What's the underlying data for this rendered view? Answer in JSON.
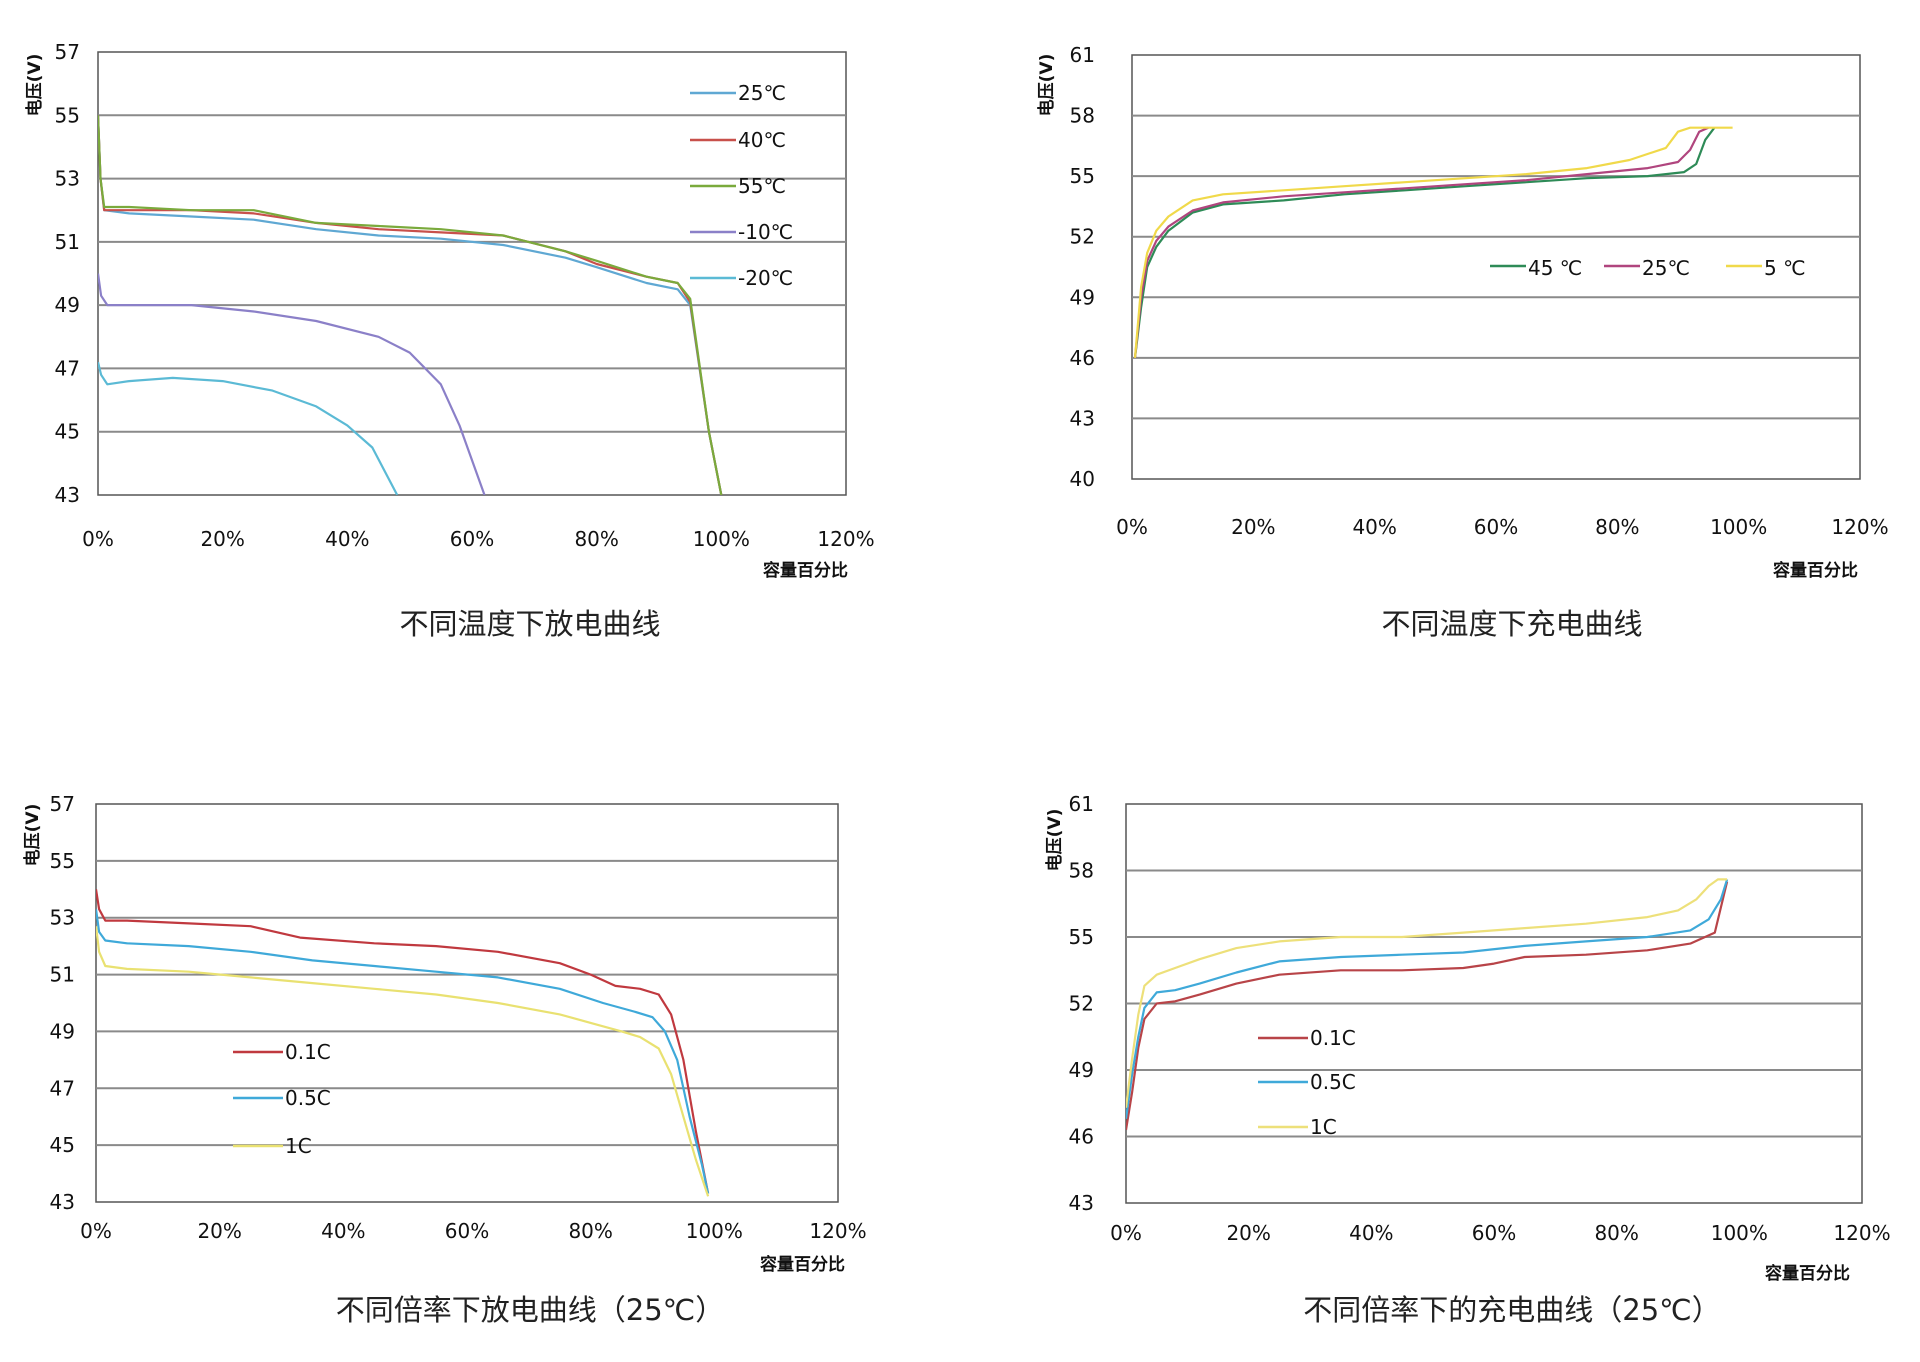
{
  "chart_data": [
    {
      "type": "line",
      "caption": "不同温度下放电曲线",
      "xlabel": "容量百分比",
      "ylabel": "电压(V)",
      "xlim": [
        0,
        120
      ],
      "ylim": [
        43,
        57
      ],
      "xticks": [
        "0%",
        "20%",
        "40%",
        "60%",
        "80%",
        "100%",
        "120%"
      ],
      "yticks": [
        "43",
        "45",
        "47",
        "49",
        "51",
        "53",
        "55",
        "57"
      ],
      "legend_position": "top-right",
      "series": [
        {
          "name": "25℃",
          "color": "#5fa8d3",
          "points": [
            [
              0,
              55
            ],
            [
              0.4,
              53
            ],
            [
              1,
              52
            ],
            [
              5,
              51.9
            ],
            [
              15,
              51.8
            ],
            [
              25,
              51.7
            ],
            [
              35,
              51.4
            ],
            [
              45,
              51.2
            ],
            [
              55,
              51.1
            ],
            [
              65,
              50.9
            ],
            [
              75,
              50.5
            ],
            [
              80,
              50.2
            ],
            [
              88,
              49.7
            ],
            [
              93,
              49.5
            ],
            [
              95,
              49
            ],
            [
              98,
              45
            ],
            [
              100,
              43
            ]
          ]
        },
        {
          "name": "40℃",
          "color": "#c8504b",
          "points": [
            [
              0,
              55
            ],
            [
              0.4,
              53
            ],
            [
              1,
              52
            ],
            [
              5,
              52
            ],
            [
              15,
              52
            ],
            [
              25,
              51.9
            ],
            [
              35,
              51.6
            ],
            [
              45,
              51.4
            ],
            [
              55,
              51.3
            ],
            [
              65,
              51.2
            ],
            [
              75,
              50.7
            ],
            [
              80,
              50.3
            ],
            [
              88,
              49.9
            ],
            [
              93,
              49.7
            ],
            [
              95,
              49.1
            ],
            [
              98,
              45
            ],
            [
              100,
              43
            ]
          ]
        },
        {
          "name": "55℃",
          "color": "#7aaa3c",
          "points": [
            [
              0,
              55
            ],
            [
              0.4,
              53
            ],
            [
              1,
              52.1
            ],
            [
              5,
              52.1
            ],
            [
              15,
              52
            ],
            [
              25,
              52
            ],
            [
              35,
              51.6
            ],
            [
              45,
              51.5
            ],
            [
              55,
              51.4
            ],
            [
              65,
              51.2
            ],
            [
              75,
              50.7
            ],
            [
              80,
              50.4
            ],
            [
              88,
              49.9
            ],
            [
              93,
              49.7
            ],
            [
              95,
              49.2
            ],
            [
              98,
              45
            ],
            [
              100,
              43
            ]
          ]
        },
        {
          "name": "-10℃",
          "color": "#8b80c8",
          "points": [
            [
              0,
              50
            ],
            [
              0.5,
              49.3
            ],
            [
              1.5,
              49
            ],
            [
              5,
              49
            ],
            [
              15,
              49
            ],
            [
              25,
              48.8
            ],
            [
              35,
              48.5
            ],
            [
              45,
              48
            ],
            [
              50,
              47.5
            ],
            [
              55,
              46.5
            ],
            [
              58,
              45.2
            ],
            [
              62,
              43
            ]
          ]
        },
        {
          "name": "-20℃",
          "color": "#5bbad5",
          "points": [
            [
              0,
              47.2
            ],
            [
              0.5,
              46.8
            ],
            [
              1.5,
              46.5
            ],
            [
              5,
              46.6
            ],
            [
              12,
              46.7
            ],
            [
              20,
              46.6
            ],
            [
              28,
              46.3
            ],
            [
              35,
              45.8
            ],
            [
              40,
              45.2
            ],
            [
              44,
              44.5
            ],
            [
              48,
              43
            ]
          ]
        }
      ]
    },
    {
      "type": "line",
      "caption": "不同温度下充电曲线",
      "xlabel": "容量百分比",
      "ylabel": "电压(V)",
      "xlim": [
        0,
        120
      ],
      "ylim": [
        40,
        61
      ],
      "xticks": [
        "0%",
        "20%",
        "40%",
        "60%",
        "80%",
        "100%",
        "120%"
      ],
      "yticks": [
        "40",
        "43",
        "46",
        "49",
        "52",
        "55",
        "58",
        "61"
      ],
      "legend_position": "middle-right",
      "series": [
        {
          "name": "45 ℃",
          "color": "#2e8b57",
          "points": [
            [
              0.5,
              46
            ],
            [
              1.5,
              48.5
            ],
            [
              2.5,
              50.5
            ],
            [
              4,
              51.5
            ],
            [
              6,
              52.3
            ],
            [
              10,
              53.2
            ],
            [
              15,
              53.6
            ],
            [
              25,
              53.8
            ],
            [
              35,
              54.1
            ],
            [
              45,
              54.3
            ],
            [
              55,
              54.5
            ],
            [
              65,
              54.7
            ],
            [
              75,
              54.9
            ],
            [
              85,
              55
            ],
            [
              91,
              55.2
            ],
            [
              93,
              55.6
            ],
            [
              94.5,
              56.8
            ],
            [
              96,
              57.4
            ]
          ]
        },
        {
          "name": "25℃",
          "color": "#b0457e",
          "points": [
            [
              0.5,
              46
            ],
            [
              1.5,
              49
            ],
            [
              2.5,
              50.8
            ],
            [
              4,
              51.8
            ],
            [
              6,
              52.5
            ],
            [
              10,
              53.3
            ],
            [
              15,
              53.7
            ],
            [
              25,
              54
            ],
            [
              35,
              54.2
            ],
            [
              45,
              54.4
            ],
            [
              55,
              54.6
            ],
            [
              65,
              54.8
            ],
            [
              75,
              55.1
            ],
            [
              85,
              55.4
            ],
            [
              90,
              55.7
            ],
            [
              92,
              56.3
            ],
            [
              93.5,
              57.2
            ],
            [
              95,
              57.4
            ]
          ]
        },
        {
          "name": "5 ℃",
          "color": "#f0d94a",
          "points": [
            [
              0.5,
              46
            ],
            [
              1.5,
              49.5
            ],
            [
              2.5,
              51.2
            ],
            [
              4,
              52.3
            ],
            [
              6,
              53
            ],
            [
              10,
              53.8
            ],
            [
              15,
              54.1
            ],
            [
              25,
              54.3
            ],
            [
              35,
              54.5
            ],
            [
              45,
              54.7
            ],
            [
              55,
              54.9
            ],
            [
              65,
              55.1
            ],
            [
              75,
              55.4
            ],
            [
              82,
              55.8
            ],
            [
              88,
              56.4
            ],
            [
              90,
              57.2
            ],
            [
              92,
              57.4
            ],
            [
              99,
              57.4
            ]
          ]
        }
      ]
    },
    {
      "type": "line",
      "caption": "不同倍率下放电曲线（25℃）",
      "xlabel": "容量百分比",
      "ylabel": "电压(V)",
      "xlim": [
        0,
        120
      ],
      "ylim": [
        43,
        57
      ],
      "xticks": [
        "0%",
        "20%",
        "40%",
        "60%",
        "80%",
        "100%",
        "120%"
      ],
      "yticks": [
        "43",
        "45",
        "47",
        "49",
        "51",
        "53",
        "55",
        "57"
      ],
      "legend_position": "lower-left",
      "series": [
        {
          "name": "0.1C",
          "color": "#c0393f",
          "points": [
            [
              0,
              54
            ],
            [
              0.5,
              53.3
            ],
            [
              1.5,
              52.9
            ],
            [
              5,
              52.9
            ],
            [
              15,
              52.8
            ],
            [
              25,
              52.7
            ],
            [
              33,
              52.3
            ],
            [
              45,
              52.1
            ],
            [
              55,
              52
            ],
            [
              65,
              51.8
            ],
            [
              75,
              51.4
            ],
            [
              80,
              51
            ],
            [
              84,
              50.6
            ],
            [
              88,
              50.5
            ],
            [
              91,
              50.3
            ],
            [
              93,
              49.6
            ],
            [
              95,
              48
            ],
            [
              97,
              45.5
            ],
            [
              99,
              43.3
            ]
          ]
        },
        {
          "name": "0.5C",
          "color": "#3fa9d9",
          "points": [
            [
              0,
              53.3
            ],
            [
              0.5,
              52.5
            ],
            [
              1.5,
              52.2
            ],
            [
              5,
              52.1
            ],
            [
              15,
              52
            ],
            [
              25,
              51.8
            ],
            [
              35,
              51.5
            ],
            [
              45,
              51.3
            ],
            [
              55,
              51.1
            ],
            [
              65,
              50.9
            ],
            [
              75,
              50.5
            ],
            [
              82,
              50
            ],
            [
              87,
              49.7
            ],
            [
              90,
              49.5
            ],
            [
              92,
              49
            ],
            [
              94,
              48
            ],
            [
              96,
              46
            ],
            [
              98,
              44.3
            ],
            [
              99,
              43.3
            ]
          ]
        },
        {
          "name": "1C",
          "color": "#e9e171",
          "points": [
            [
              0,
              52.7
            ],
            [
              0.5,
              51.8
            ],
            [
              1.5,
              51.3
            ],
            [
              5,
              51.2
            ],
            [
              15,
              51.1
            ],
            [
              25,
              50.9
            ],
            [
              35,
              50.7
            ],
            [
              45,
              50.5
            ],
            [
              55,
              50.3
            ],
            [
              65,
              50
            ],
            [
              75,
              49.6
            ],
            [
              80,
              49.3
            ],
            [
              85,
              49
            ],
            [
              88,
              48.8
            ],
            [
              91,
              48.4
            ],
            [
              93,
              47.5
            ],
            [
              95,
              46
            ],
            [
              97,
              44.5
            ],
            [
              99,
              43.2
            ]
          ]
        }
      ]
    },
    {
      "type": "line",
      "caption": "不同倍率下的充电曲线（25℃）",
      "xlabel": "容量百分比",
      "ylabel": "电压(V)",
      "xlim": [
        0,
        120
      ],
      "ylim": [
        43,
        61
      ],
      "xticks": [
        "0%",
        "20%",
        "40%",
        "60%",
        "80%",
        "100%",
        "120%"
      ],
      "yticks": [
        "43",
        "46",
        "49",
        "52",
        "55",
        "58",
        "61"
      ],
      "legend_position": "lower-left",
      "series": [
        {
          "name": "0.1C",
          "color": "#b84448",
          "points": [
            [
              0,
              46.3
            ],
            [
              1,
              48
            ],
            [
              2,
              50
            ],
            [
              3,
              51.3
            ],
            [
              5,
              52
            ],
            [
              8,
              52.1
            ],
            [
              12,
              52.4
            ],
            [
              18,
              52.9
            ],
            [
              25,
              53.3
            ],
            [
              35,
              53.5
            ],
            [
              45,
              53.5
            ],
            [
              55,
              53.6
            ],
            [
              60,
              53.8
            ],
            [
              65,
              54.1
            ],
            [
              75,
              54.2
            ],
            [
              85,
              54.4
            ],
            [
              92,
              54.7
            ],
            [
              96,
              55.2
            ],
            [
              98,
              57.5
            ]
          ]
        },
        {
          "name": "0.5C",
          "color": "#3fa9d9",
          "points": [
            [
              0,
              46.8
            ],
            [
              1,
              48.8
            ],
            [
              2,
              50.5
            ],
            [
              3,
              51.8
            ],
            [
              5,
              52.5
            ],
            [
              8,
              52.6
            ],
            [
              12,
              52.9
            ],
            [
              18,
              53.4
            ],
            [
              25,
              53.9
            ],
            [
              35,
              54.1
            ],
            [
              45,
              54.2
            ],
            [
              55,
              54.3
            ],
            [
              65,
              54.6
            ],
            [
              75,
              54.8
            ],
            [
              85,
              55
            ],
            [
              92,
              55.3
            ],
            [
              95,
              55.8
            ],
            [
              97,
              56.7
            ],
            [
              98,
              57.6
            ]
          ]
        },
        {
          "name": "1C",
          "color": "#ede07a",
          "points": [
            [
              0,
              47.3
            ],
            [
              1,
              49.5
            ],
            [
              2,
              51.5
            ],
            [
              3,
              52.8
            ],
            [
              5,
              53.3
            ],
            [
              8,
              53.6
            ],
            [
              12,
              54
            ],
            [
              18,
              54.5
            ],
            [
              25,
              54.8
            ],
            [
              35,
              55
            ],
            [
              45,
              55
            ],
            [
              55,
              55.2
            ],
            [
              65,
              55.4
            ],
            [
              75,
              55.6
            ],
            [
              85,
              55.9
            ],
            [
              90,
              56.2
            ],
            [
              93,
              56.7
            ],
            [
              95,
              57.3
            ],
            [
              96.5,
              57.6
            ],
            [
              98,
              57.6
            ]
          ]
        }
      ]
    }
  ]
}
